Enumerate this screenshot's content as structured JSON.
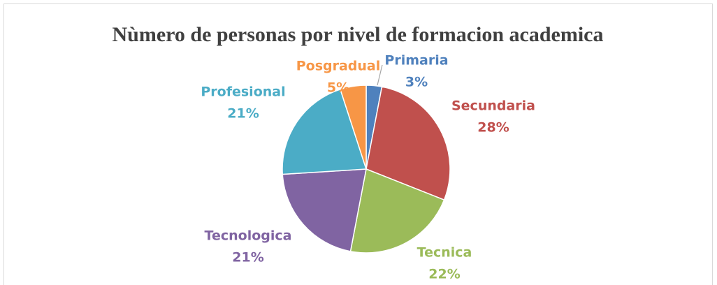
{
  "chart_data": {
    "type": "pie",
    "title": "Nùmero de personas por nivel de formacion academica",
    "categories": [
      "Primaria",
      "Secundaria",
      "Tecnica",
      "Tecnologica",
      "Profesional",
      "Posgradual"
    ],
    "values": [
      3,
      28,
      22,
      21,
      21,
      5
    ],
    "value_labels": [
      "3%",
      "28%",
      "22%",
      "21%",
      "21%",
      "5%"
    ],
    "colors": [
      "#4f81bd",
      "#c0504d",
      "#9bbb59",
      "#8064a2",
      "#4bacc6",
      "#f79646"
    ]
  }
}
